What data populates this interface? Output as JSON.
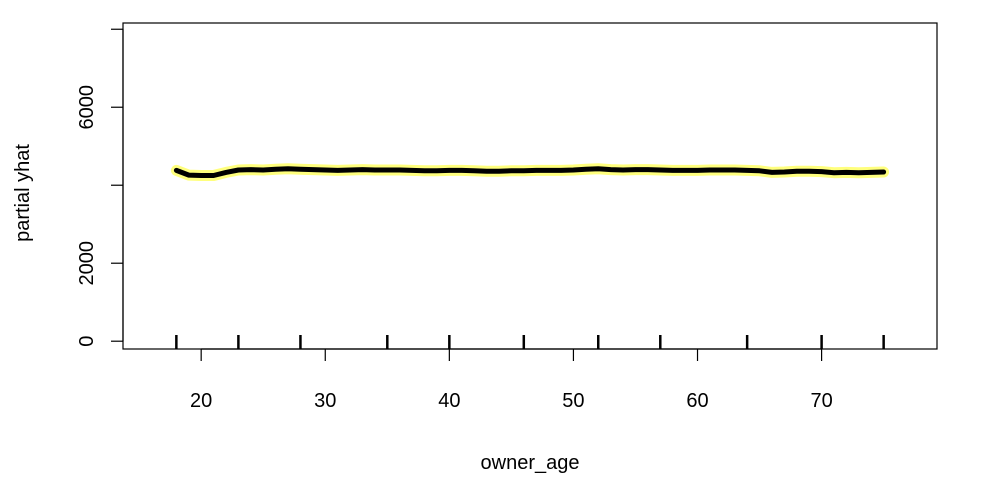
{
  "chart_data": {
    "type": "line",
    "title": "",
    "xlabel": "owner_age",
    "ylabel": "partial yhat",
    "xlim": [
      13.7,
      79.3
    ],
    "ylim": [
      -200,
      8160
    ],
    "x_ticks": [
      20,
      30,
      40,
      50,
      60,
      70
    ],
    "y_ticks": [
      0,
      2000,
      6000
    ],
    "grid": false,
    "colors": {
      "line": "#000000",
      "halo": "#ffff66",
      "frame": "#000000"
    },
    "series": [
      {
        "x": [
          18,
          19,
          20,
          21,
          22,
          23,
          24,
          25,
          26,
          27,
          28,
          29,
          30,
          31,
          32,
          33,
          34,
          35,
          36,
          37,
          38,
          39,
          40,
          41,
          42,
          43,
          44,
          45,
          46,
          47,
          48,
          49,
          50,
          51,
          52,
          53,
          54,
          55,
          56,
          57,
          58,
          59,
          60,
          61,
          62,
          63,
          64,
          65,
          66,
          67,
          68,
          69,
          70,
          71,
          72,
          73,
          74,
          75
        ],
        "values": [
          4380,
          4260,
          4250,
          4250,
          4330,
          4390,
          4400,
          4390,
          4410,
          4420,
          4410,
          4400,
          4390,
          4380,
          4390,
          4400,
          4390,
          4390,
          4390,
          4380,
          4370,
          4370,
          4380,
          4380,
          4370,
          4360,
          4360,
          4370,
          4370,
          4380,
          4380,
          4380,
          4390,
          4410,
          4420,
          4400,
          4390,
          4400,
          4400,
          4390,
          4380,
          4380,
          4380,
          4390,
          4390,
          4390,
          4380,
          4370,
          4330,
          4340,
          4360,
          4360,
          4350,
          4320,
          4330,
          4320,
          4330,
          4340
        ]
      }
    ],
    "rug": [
      18,
      23,
      28,
      35,
      40,
      46,
      52,
      57,
      64,
      70,
      75
    ]
  }
}
